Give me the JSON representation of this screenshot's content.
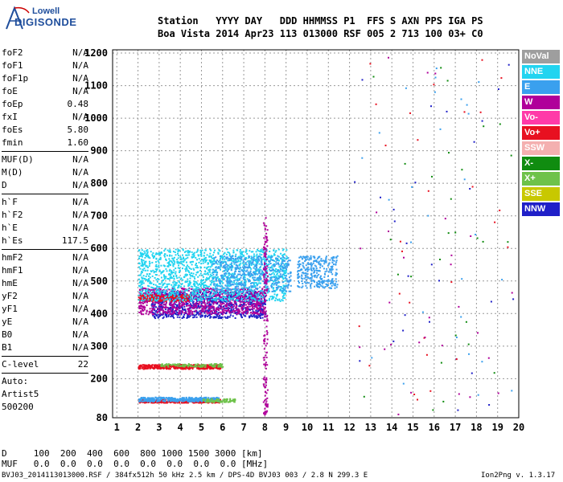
{
  "logo": {
    "line1": "Lowell",
    "line2": "DIGISONDE"
  },
  "header": {
    "row1": "Station   YYYY DAY   DDD HHMMSS P1  FFS S AXN PPS IGA PS",
    "row2": "Boa Vista 2014 Apr23 113 013000 RSF 005 2 713 100 03+ C0"
  },
  "params": [
    {
      "group": [
        {
          "name": "foF2",
          "value": "N/A"
        },
        {
          "name": "foF1",
          "value": "N/A"
        },
        {
          "name": "foF1p",
          "value": "N/A"
        },
        {
          "name": "foE",
          "value": "N/A"
        },
        {
          "name": "foEp",
          "value": "0.48"
        },
        {
          "name": "fxI",
          "value": "N/A"
        },
        {
          "name": "foEs",
          "value": "5.80"
        },
        {
          "name": "fmin",
          "value": "1.60"
        }
      ]
    },
    {
      "group": [
        {
          "name": "MUF(D)",
          "value": "N/A"
        },
        {
          "name": "M(D)",
          "value": "N/A"
        },
        {
          "name": "D",
          "value": "N/A"
        }
      ]
    },
    {
      "group": [
        {
          "name": "h`F",
          "value": "N/A"
        },
        {
          "name": "h`F2",
          "value": "N/A"
        },
        {
          "name": "h`E",
          "value": "N/A"
        },
        {
          "name": "h`Es",
          "value": "117.5"
        }
      ]
    },
    {
      "group": [
        {
          "name": "hmF2",
          "value": "N/A"
        },
        {
          "name": "hmF1",
          "value": "N/A"
        },
        {
          "name": "hmE",
          "value": "N/A"
        },
        {
          "name": "yF2",
          "value": "N/A"
        },
        {
          "name": "yF1",
          "value": "N/A"
        },
        {
          "name": "yE",
          "value": "N/A"
        },
        {
          "name": "B0",
          "value": "N/A"
        },
        {
          "name": "B1",
          "value": "N/A"
        }
      ]
    },
    {
      "group": [
        {
          "name": "C-level",
          "value": "22"
        }
      ]
    }
  ],
  "auto": {
    "line1": "Auto:",
    "line2": "Artist5",
    "line3": "500200"
  },
  "legend": [
    {
      "label": "NoVal",
      "color": "#9e9e9e"
    },
    {
      "label": "NNE",
      "color": "#22d4f0"
    },
    {
      "label": "E",
      "color": "#3aa0ee"
    },
    {
      "label": "W",
      "color": "#b0009a"
    },
    {
      "label": "Vo-",
      "color": "#ff3aa8"
    },
    {
      "label": "Vo+",
      "color": "#e81020"
    },
    {
      "label": "SSW",
      "color": "#f4b0b0"
    },
    {
      "label": "X-",
      "color": "#108c10"
    },
    {
      "label": "X+",
      "color": "#6ec24a"
    },
    {
      "label": "SSE",
      "color": "#c8c800"
    },
    {
      "label": "NNW",
      "color": "#2020c8"
    }
  ],
  "muf_table": {
    "d_row": "D     100  200  400  600  800 1000 1500 3000 [km]",
    "muf_row": "MUF   0.0  0.0  0.0  0.0  0.0  0.0  0.0  0.0 [MHz]"
  },
  "footer": "BVJ03_2014113013000.RSF / 384fx512h 50 kHz 2.5 km / DPS-4D BVJ03 003 / 2.8 N 299.3 E",
  "version": "Ion2Png v. 1.3.17",
  "chart_data": {
    "type": "scatter",
    "x_ticks": [
      1,
      2,
      3,
      4,
      5,
      6,
      7,
      8,
      9,
      10,
      11,
      12,
      13,
      14,
      15,
      16,
      17,
      18,
      19,
      20
    ],
    "y_ticks": [
      80,
      200,
      300,
      400,
      500,
      600,
      700,
      800,
      900,
      1000,
      1100,
      1200
    ],
    "xlim": [
      0.8,
      20
    ],
    "ylim": [
      80,
      1210
    ],
    "grid": true,
    "legend_position": "right",
    "clusters": [
      {
        "series": "Vo+",
        "xmin": 2.0,
        "xmax": 5.9,
        "ymin": 128,
        "ymax": 138,
        "count": 420
      },
      {
        "series": "E",
        "xmin": 2.0,
        "xmax": 5.8,
        "ymin": 132,
        "ymax": 145,
        "count": 360
      },
      {
        "series": "X+",
        "xmin": 5.0,
        "xmax": 6.6,
        "ymin": 130,
        "ymax": 140,
        "count": 80
      },
      {
        "series": "Vo+",
        "xmin": 2.0,
        "xmax": 5.9,
        "ymin": 232,
        "ymax": 245,
        "count": 380
      },
      {
        "series": "X+",
        "xmin": 3.0,
        "xmax": 6.0,
        "ymin": 238,
        "ymax": 248,
        "count": 120
      },
      {
        "series": "NNW",
        "xmin": 2.6,
        "xmax": 8.0,
        "ymin": 388,
        "ymax": 470,
        "count": 900
      },
      {
        "series": "W",
        "xmin": 2.0,
        "xmax": 8.0,
        "ymin": 400,
        "ymax": 480,
        "count": 900
      },
      {
        "series": "Vo+",
        "xmin": 2.0,
        "xmax": 4.5,
        "ymin": 440,
        "ymax": 460,
        "count": 200
      },
      {
        "series": "NNE",
        "xmin": 2.0,
        "xmax": 9.0,
        "ymin": 440,
        "ymax": 600,
        "count": 1500
      },
      {
        "series": "E",
        "xmin": 5.5,
        "xmax": 9.2,
        "ymin": 470,
        "ymax": 580,
        "count": 500
      },
      {
        "series": "E",
        "xmin": 9.5,
        "xmax": 11.4,
        "ymin": 480,
        "ymax": 580,
        "count": 300
      },
      {
        "series": "W",
        "xmin": 7.9,
        "xmax": 8.1,
        "ymin": 85,
        "ymax": 700,
        "count": 160
      }
    ]
  }
}
